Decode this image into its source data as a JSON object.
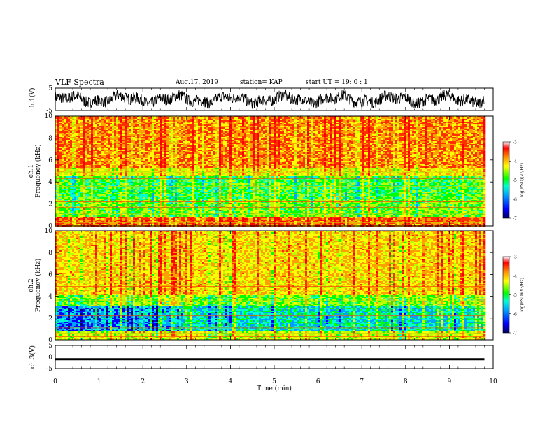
{
  "header": {
    "title": "VLF Spectra",
    "date": "Aug.17, 2019",
    "station": "station= KAP",
    "start": "start  UT =   19: 0  : 1"
  },
  "chart_data": [
    {
      "type": "line",
      "panel": "ch1-waveform",
      "ylabel": "ch.1(V)",
      "ylim": [
        -5,
        5
      ],
      "yticks": [
        "5",
        "-5"
      ],
      "xlim": [
        0,
        10
      ],
      "x_extent_min": 9.8,
      "color": "#000000"
    },
    {
      "type": "heatmap",
      "panel": "ch1-spectrogram",
      "ylabel": "ch.1 Frequency (kHz)",
      "ylim": [
        0,
        10
      ],
      "yticks": [
        "0",
        "2",
        "4",
        "6",
        "8",
        "10"
      ],
      "xlim": [
        0,
        10
      ],
      "x_extent_min": 9.8,
      "colorbar": {
        "label": "log(PSD)(V²/Hz)",
        "range": [
          -7,
          -3
        ],
        "ticks": [
          "-3",
          "-4",
          "-5",
          "-6",
          "-7"
        ]
      }
    },
    {
      "type": "heatmap",
      "panel": "ch2-spectrogram",
      "ylabel": "ch.2 Frequency (kHz)",
      "ylim": [
        0,
        10
      ],
      "yticks": [
        "0",
        "2",
        "4",
        "6",
        "8",
        "10"
      ],
      "xlim": [
        0,
        10
      ],
      "x_extent_min": 9.8,
      "colorbar": {
        "label": "log(PSD)(V²/Hz)",
        "range": [
          -7,
          -3
        ],
        "ticks": [
          "-3",
          "-4",
          "-5",
          "-6",
          "-7"
        ]
      }
    },
    {
      "type": "line",
      "panel": "ch3-waveform",
      "ylabel": "ch.3(V)",
      "ylim": [
        -5,
        5
      ],
      "yticks": [
        "5",
        "0",
        "-5"
      ],
      "xlim": [
        0,
        10
      ],
      "x_extent_min": 9.8,
      "value": -1,
      "color": "#000000"
    }
  ],
  "xaxis": {
    "label": "Time  (min)",
    "ticks": [
      "0",
      "1",
      "2",
      "3",
      "4",
      "5",
      "6",
      "7",
      "8",
      "9",
      "10"
    ]
  },
  "palette": [
    "#000078",
    "#0000ff",
    "#00a0ff",
    "#00ffd0",
    "#00ff00",
    "#b8ff00",
    "#ffff00",
    "#ffa000",
    "#ff3000",
    "#ff0000"
  ]
}
